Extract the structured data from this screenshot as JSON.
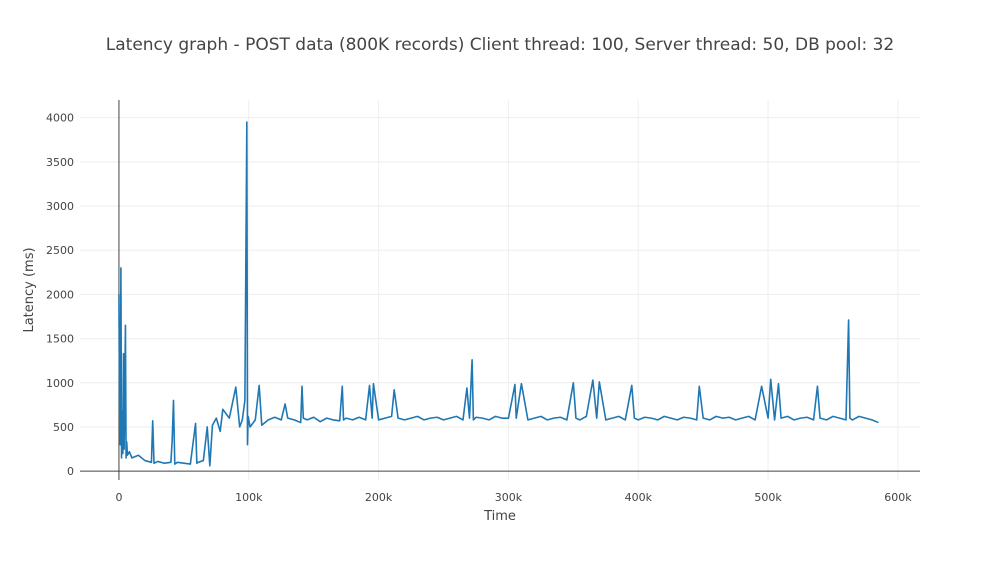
{
  "chart_data": {
    "type": "line",
    "title": "Latency graph - POST data (800K records) Client thread: 100, Server thread: 50, DB pool: 32",
    "xlabel": "Time",
    "ylabel": "Latency (ms)",
    "xlim": [
      -30000,
      617000
    ],
    "ylim": [
      -100,
      4200
    ],
    "x_ticks": [
      0,
      100000,
      200000,
      300000,
      400000,
      500000,
      600000
    ],
    "x_tick_labels": [
      "0",
      "100k",
      "200k",
      "300k",
      "400k",
      "500k",
      "600k"
    ],
    "y_ticks": [
      0,
      500,
      1000,
      1500,
      2000,
      2500,
      3000,
      3500,
      4000
    ],
    "y_tick_labels": [
      "0",
      "500",
      "1000",
      "1500",
      "2000",
      "2500",
      "3000",
      "3500",
      "4000"
    ],
    "grid": true,
    "legend": false,
    "series_color": "#1f77b4",
    "series": [
      {
        "x": [
          0,
          500,
          1000,
          1500,
          2000,
          2500,
          3000,
          3500,
          4000,
          5000,
          5500,
          6000,
          6500,
          8000,
          10000,
          15000,
          20000,
          25000,
          26000,
          27000,
          30000,
          35000,
          40000,
          41000,
          42000,
          43000,
          45000,
          50000,
          55000,
          59000,
          60000,
          61000,
          65000,
          68000,
          70000,
          72000,
          75000,
          78000,
          80000,
          85000,
          90000,
          93000,
          95000,
          97000,
          98500,
          99000,
          99500,
          101000,
          105000,
          108000,
          110000,
          115000,
          120000,
          125000,
          128000,
          130000,
          135000,
          140000,
          141000,
          142000,
          145000,
          150000,
          155000,
          160000,
          165000,
          170000,
          172000,
          173000,
          175000,
          180000,
          185000,
          190000,
          193000,
          195000,
          196000,
          200000,
          205000,
          210000,
          212000,
          215000,
          220000,
          225000,
          230000,
          235000,
          240000,
          245000,
          250000,
          255000,
          260000,
          265000,
          268000,
          270000,
          272000,
          273000,
          275000,
          280000,
          285000,
          290000,
          295000,
          300000,
          305000,
          306000,
          310000,
          315000,
          320000,
          325000,
          330000,
          335000,
          340000,
          345000,
          350000,
          352000,
          355000,
          360000,
          365000,
          368000,
          370000,
          375000,
          380000,
          385000,
          390000,
          395000,
          397000,
          400000,
          405000,
          410000,
          415000,
          420000,
          425000,
          430000,
          435000,
          440000,
          445000,
          447000,
          450000,
          455000,
          460000,
          465000,
          470000,
          475000,
          480000,
          485000,
          490000,
          495000,
          500000,
          502000,
          505000,
          508000,
          510000,
          515000,
          520000,
          525000,
          530000,
          535000,
          538000,
          540000,
          545000,
          550000,
          555000,
          560000,
          562000,
          563000,
          565000,
          570000,
          575000,
          580000,
          585000
        ],
        "y": [
          2000,
          700,
          300,
          2300,
          150,
          680,
          200,
          1330,
          250,
          1650,
          150,
          330,
          180,
          220,
          150,
          180,
          120,
          100,
          570,
          90,
          110,
          90,
          100,
          350,
          800,
          80,
          100,
          90,
          80,
          540,
          90,
          100,
          120,
          500,
          60,
          520,
          600,
          450,
          700,
          600,
          950,
          500,
          580,
          800,
          3950,
          300,
          620,
          500,
          580,
          970,
          520,
          580,
          610,
          580,
          760,
          600,
          580,
          550,
          960,
          600,
          580,
          610,
          560,
          600,
          580,
          570,
          960,
          580,
          600,
          580,
          610,
          580,
          970,
          600,
          990,
          580,
          600,
          620,
          920,
          600,
          580,
          600,
          620,
          580,
          600,
          610,
          580,
          600,
          620,
          580,
          940,
          600,
          1260,
          580,
          610,
          600,
          580,
          620,
          600,
          600,
          980,
          600,
          990,
          580,
          600,
          620,
          580,
          600,
          610,
          580,
          1000,
          600,
          580,
          620,
          1030,
          600,
          1010,
          580,
          600,
          620,
          580,
          970,
          600,
          580,
          610,
          600,
          580,
          620,
          600,
          580,
          610,
          600,
          580,
          960,
          600,
          580,
          620,
          600,
          610,
          580,
          600,
          620,
          580,
          960,
          600,
          1040,
          580,
          990,
          600,
          620,
          580,
          600,
          610,
          580,
          960,
          600,
          580,
          620,
          600,
          580,
          1710,
          600,
          580,
          620,
          600,
          580,
          550
        ]
      }
    ]
  }
}
